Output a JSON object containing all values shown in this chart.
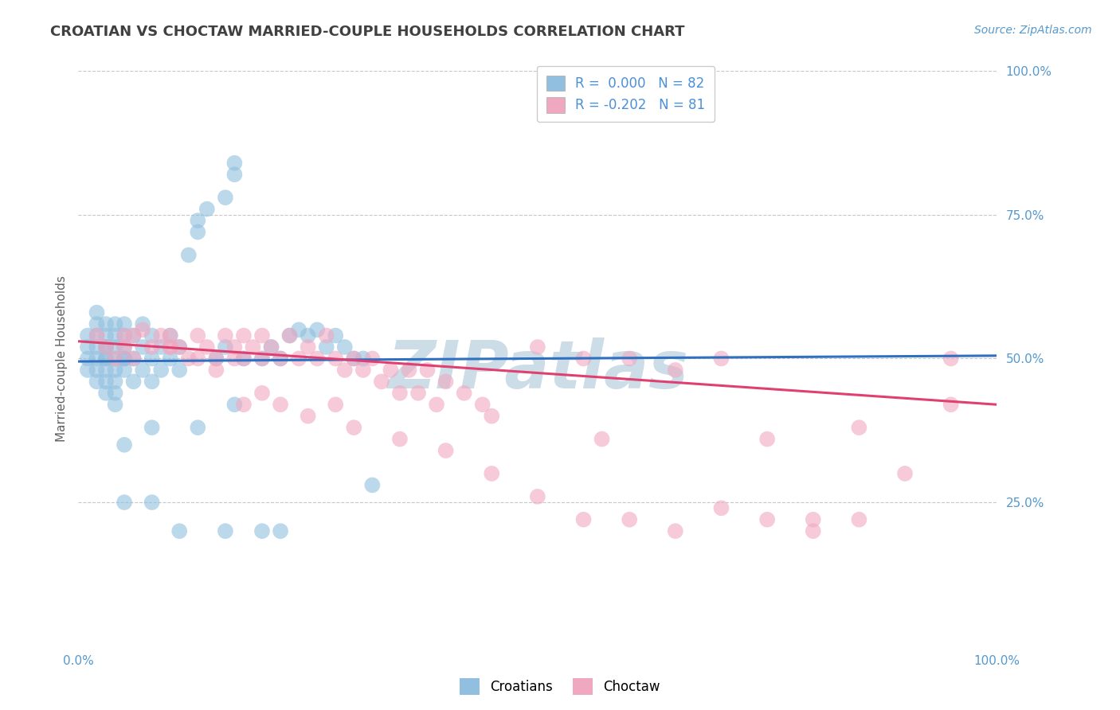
{
  "title": "CROATIAN VS CHOCTAW MARRIED-COUPLE HOUSEHOLDS CORRELATION CHART",
  "source": "Source: ZipAtlas.com",
  "ylabel": "Married-couple Households",
  "xlim": [
    0,
    100
  ],
  "ylim": [
    0,
    100
  ],
  "x_tick_labels": [
    "0.0%",
    "100.0%"
  ],
  "y_tick_labels": [
    "25.0%",
    "50.0%",
    "75.0%",
    "100.0%"
  ],
  "y_tick_positions": [
    25,
    50,
    75,
    100
  ],
  "legend_labels": [
    "Croatians",
    "Choctaw"
  ],
  "background_color": "#ffffff",
  "grid_color": "#c8c8c8",
  "title_color": "#404040",
  "watermark_text": "ZIPatlas",
  "watermark_color": "#ccdde8",
  "croatian_scatter_color": "#90bfdf",
  "choctaw_scatter_color": "#f0a8c0",
  "croatian_line_color": "#3070c0",
  "choctaw_line_color": "#e04070",
  "croatian_line_style": "-",
  "choctaw_line_style": "-",
  "croatian_x": [
    1,
    1,
    1,
    1,
    2,
    2,
    2,
    2,
    2,
    2,
    2,
    3,
    3,
    3,
    3,
    3,
    3,
    3,
    3,
    3,
    4,
    4,
    4,
    4,
    4,
    4,
    4,
    4,
    5,
    5,
    5,
    5,
    5,
    5,
    6,
    6,
    6,
    7,
    7,
    7,
    8,
    8,
    8,
    9,
    9,
    10,
    10,
    11,
    11,
    12,
    13,
    13,
    14,
    15,
    16,
    16,
    17,
    17,
    18,
    20,
    21,
    22,
    23,
    24,
    25,
    26,
    27,
    28,
    29,
    30,
    31,
    32,
    5,
    8,
    11,
    16,
    20,
    22,
    5,
    8,
    13,
    17
  ],
  "croatian_y": [
    50,
    52,
    54,
    48,
    46,
    50,
    52,
    54,
    56,
    58,
    48,
    44,
    46,
    48,
    50,
    52,
    54,
    56,
    50,
    52,
    42,
    44,
    46,
    48,
    50,
    52,
    54,
    56,
    50,
    52,
    54,
    48,
    50,
    56,
    46,
    50,
    54,
    48,
    52,
    56,
    46,
    50,
    54,
    48,
    52,
    50,
    54,
    48,
    52,
    68,
    72,
    74,
    76,
    50,
    52,
    78,
    82,
    84,
    50,
    50,
    52,
    50,
    54,
    55,
    54,
    55,
    52,
    54,
    52,
    50,
    50,
    28,
    25,
    25,
    20,
    20,
    20,
    20,
    35,
    38,
    38,
    42
  ],
  "choctaw_x": [
    2,
    3,
    4,
    5,
    5,
    6,
    6,
    7,
    8,
    9,
    10,
    10,
    11,
    12,
    13,
    13,
    14,
    15,
    16,
    17,
    17,
    18,
    18,
    19,
    20,
    20,
    21,
    22,
    23,
    24,
    25,
    26,
    27,
    28,
    29,
    30,
    31,
    32,
    33,
    34,
    35,
    36,
    37,
    38,
    39,
    40,
    42,
    44,
    45,
    50,
    55,
    57,
    60,
    65,
    70,
    75,
    80,
    85,
    90,
    95,
    10,
    15,
    18,
    20,
    22,
    25,
    28,
    30,
    35,
    40,
    45,
    50,
    55,
    60,
    65,
    70,
    75,
    80,
    85,
    95
  ],
  "choctaw_y": [
    54,
    52,
    50,
    52,
    54,
    50,
    54,
    55,
    52,
    54,
    52,
    54,
    52,
    50,
    50,
    54,
    52,
    50,
    54,
    52,
    50,
    54,
    50,
    52,
    50,
    54,
    52,
    50,
    54,
    50,
    52,
    50,
    54,
    50,
    48,
    50,
    48,
    50,
    46,
    48,
    44,
    48,
    44,
    48,
    42,
    46,
    44,
    42,
    40,
    52,
    50,
    36,
    50,
    48,
    50,
    36,
    22,
    38,
    30,
    50,
    52,
    48,
    42,
    44,
    42,
    40,
    42,
    38,
    36,
    34,
    30,
    26,
    22,
    22,
    20,
    24,
    22,
    20,
    22,
    42
  ],
  "croatian_trend_x": [
    0,
    100
  ],
  "croatian_trend_y": [
    49.5,
    50.5
  ],
  "choctaw_trend_x": [
    0,
    100
  ],
  "choctaw_trend_y": [
    53.0,
    42.0
  ]
}
